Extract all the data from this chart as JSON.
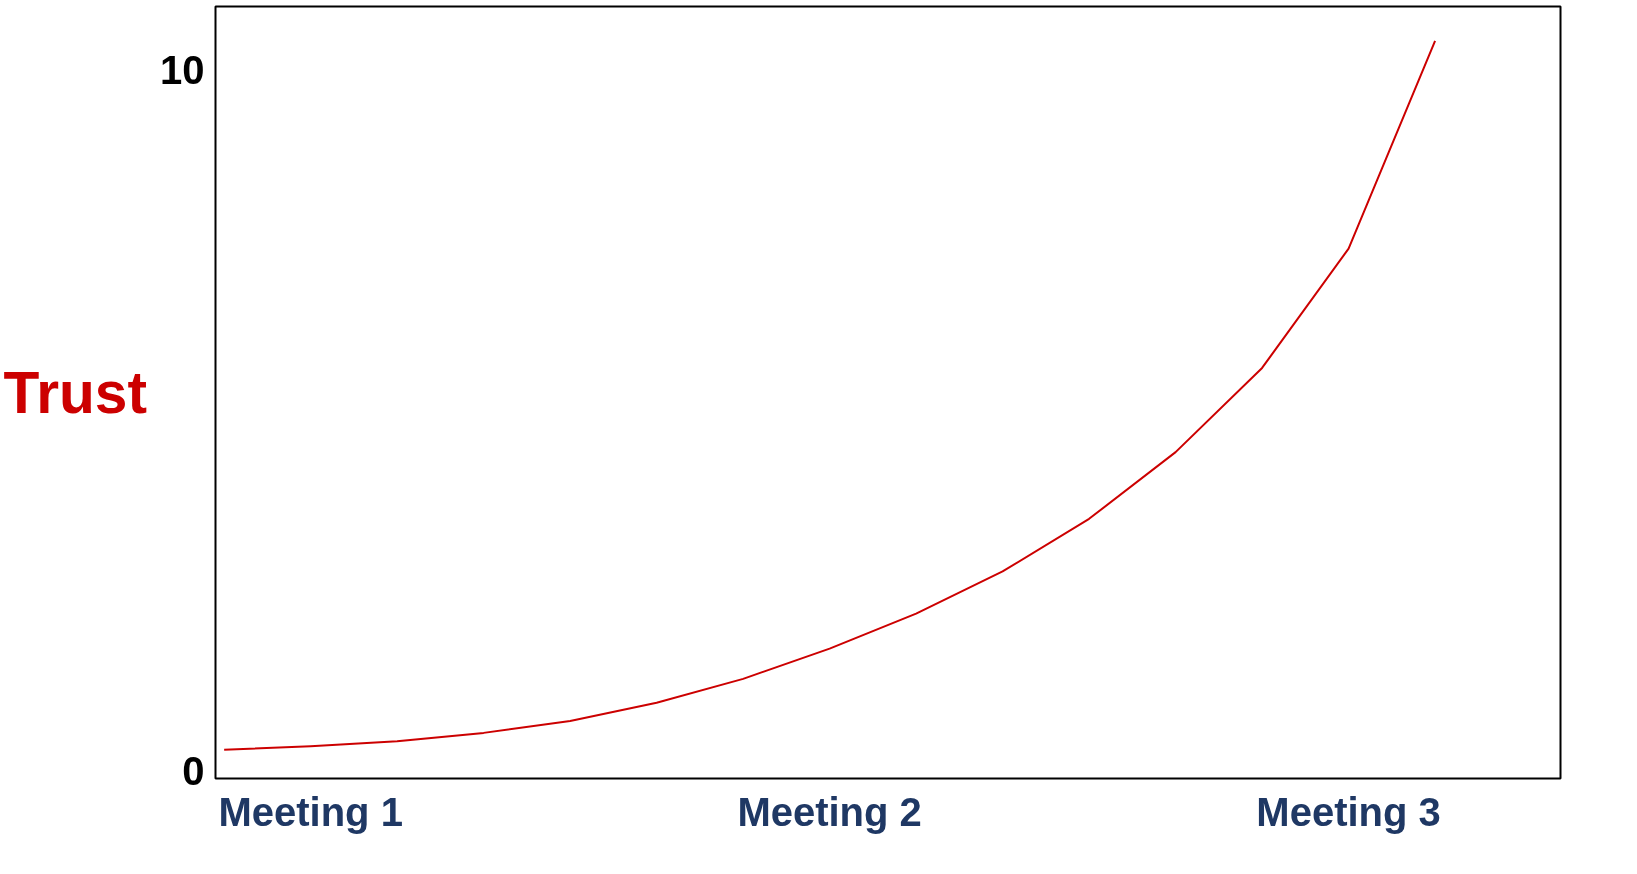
{
  "chart_data": {
    "type": "line",
    "ylabel": "Trust",
    "categories": [
      null,
      "Meeting 1",
      null,
      null,
      null,
      null,
      null,
      "Meeting 2",
      null,
      null,
      null,
      null,
      null,
      "Meeting 3",
      null
    ],
    "series": [
      {
        "color": "#cc0000",
        "values": [
          0.31,
          0.36,
          0.43,
          0.55,
          0.72,
          0.98,
          1.32,
          1.75,
          2.25,
          2.85,
          3.6,
          4.55,
          5.75,
          7.45,
          10.41
        ]
      }
    ],
    "ylim": [
      -0.1,
      10.9
    ],
    "yticks": [
      0,
      10
    ],
    "marker": "none",
    "line_style": "solid"
  }
}
